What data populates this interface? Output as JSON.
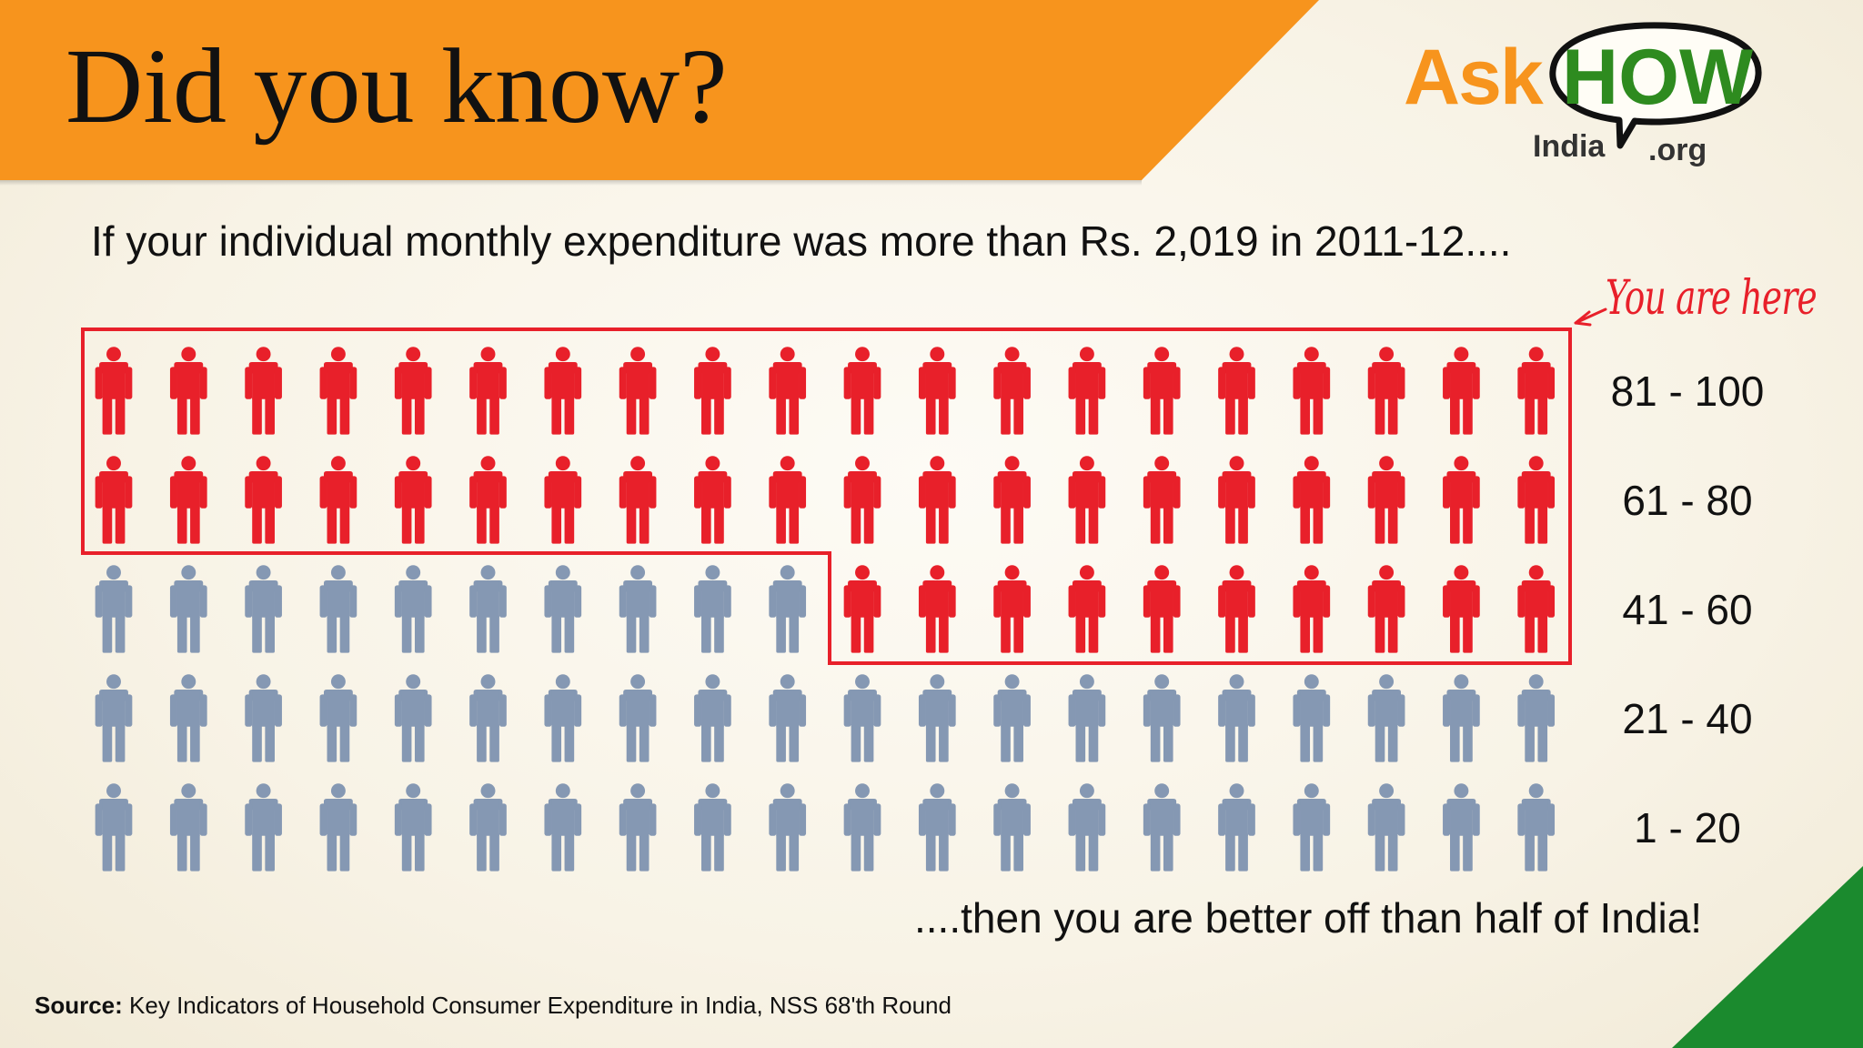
{
  "header": {
    "title": "Did you know?"
  },
  "logo": {
    "ask": "Ask",
    "how": "HOW",
    "india": "India",
    "org": ".org"
  },
  "intro_text": "If your individual monthly expenditure was more than Rs. 2,019 in 2011-12....",
  "callout": "You are here",
  "conclusion": "....then you are better off than half of India!",
  "source": {
    "label": "Source:",
    "text": "Key Indicators of Household Consumer Expenditure in India, NSS 68'th Round"
  },
  "pictograph": {
    "total_people": 100,
    "per_row": 20,
    "highlighted_from": 51,
    "rows": [
      {
        "label": "81 - 100",
        "start": 81
      },
      {
        "label": "61 - 80",
        "start": 61
      },
      {
        "label": "41 - 60",
        "start": 41
      },
      {
        "label": "21 - 40",
        "start": 21
      },
      {
        "label": "1 - 20",
        "start": 1
      }
    ]
  },
  "colors": {
    "banner": "#f7941d",
    "highlight": "#e8202a",
    "person_default": "#8598b3",
    "brand_green": "#2e8b1f",
    "corner_green": "#1b8a2e"
  }
}
